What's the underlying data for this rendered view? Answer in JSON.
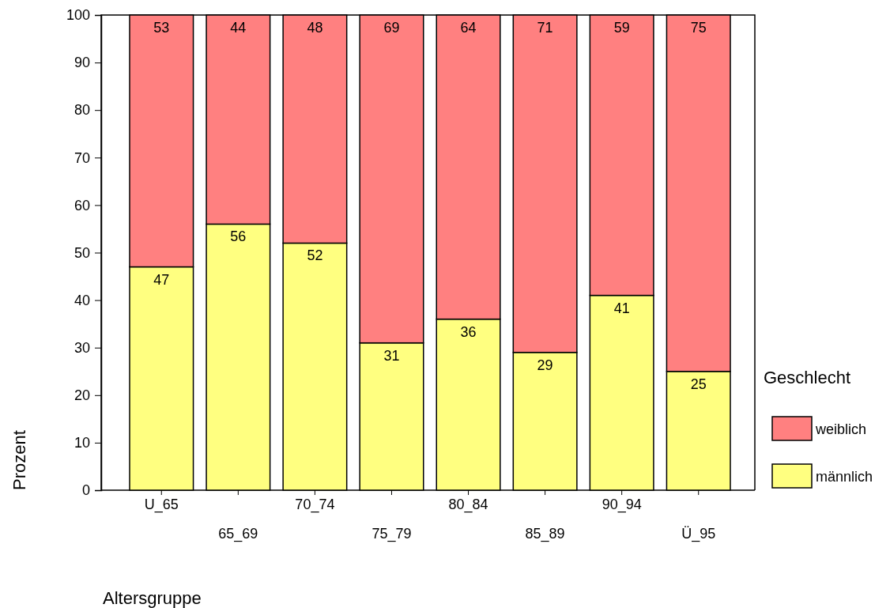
{
  "chart_data": {
    "type": "bar",
    "stacked": true,
    "xlabel": "Altersgruppe",
    "ylabel": "Prozent",
    "legend_title": "Geschlecht",
    "legend": "right",
    "data_labels": true,
    "categories": [
      "U_65",
      "65_69",
      "70_74",
      "75_79",
      "80_84",
      "85_89",
      "90_94",
      "Ü_95"
    ],
    "series": [
      {
        "name": "männlich",
        "color": "#ffff80",
        "values": [
          47,
          56,
          52,
          31,
          36,
          29,
          41,
          25
        ]
      },
      {
        "name": "weiblich",
        "color": "#ff8080",
        "values": [
          53,
          44,
          48,
          69,
          64,
          71,
          59,
          75
        ]
      }
    ],
    "ylim": [
      0,
      100
    ],
    "yticks": [
      0,
      10,
      20,
      30,
      40,
      50,
      60,
      70,
      80,
      90,
      100
    ]
  }
}
